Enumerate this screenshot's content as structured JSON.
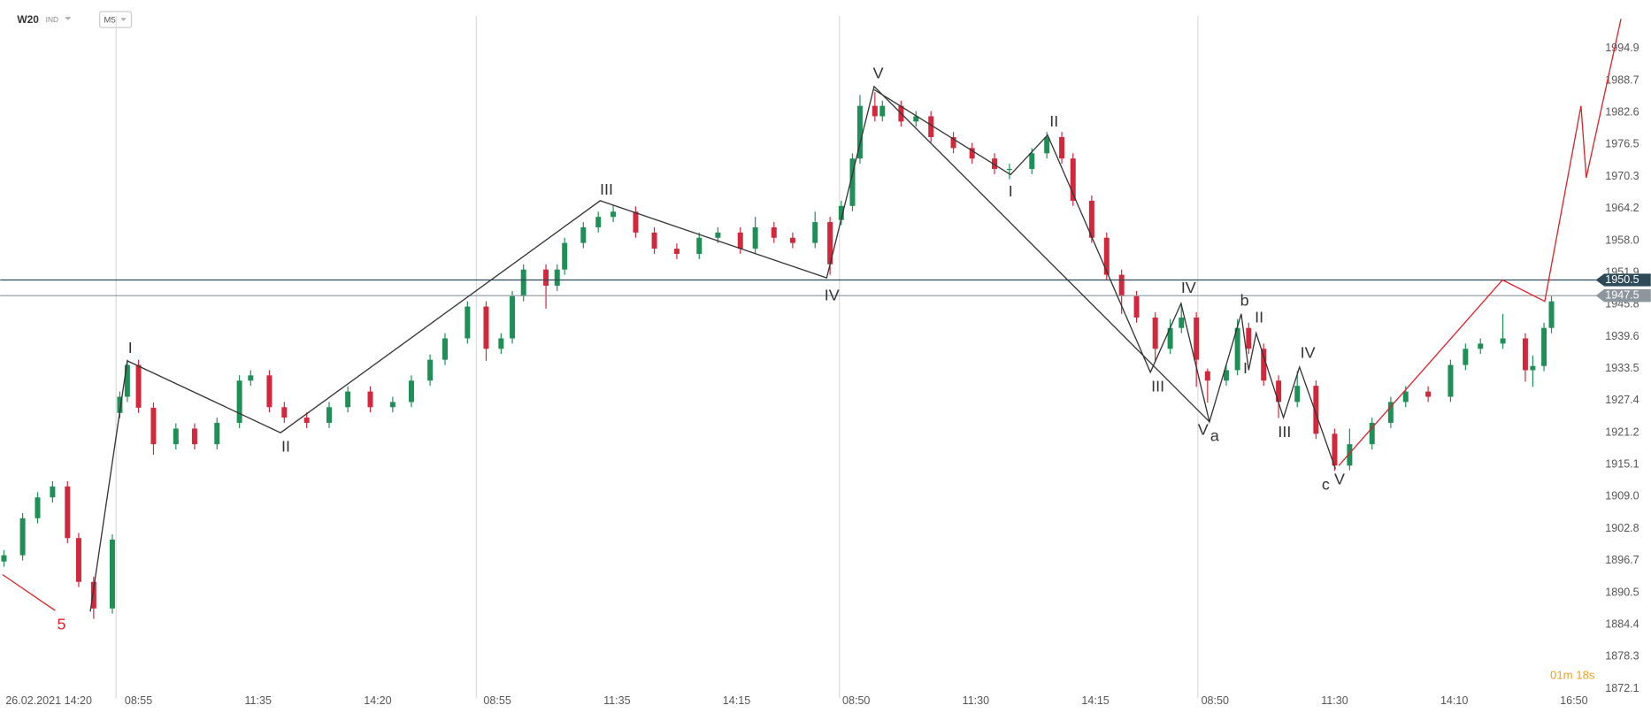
{
  "header": {
    "symbol": "W20",
    "market": "IND",
    "timeframe": "M5"
  },
  "chart_data": {
    "type": "candlestick",
    "up_color": "#1f8f58",
    "down_color": "#d3283b",
    "xlim": [
      0,
      426
    ],
    "ylim": [
      1871.3,
      2004.2
    ],
    "yticks": [
      1994.9,
      1988.7,
      1982.6,
      1976.5,
      1970.3,
      1964.2,
      {
        "value": 1958,
        "label": "1958.0"
      },
      1951.9,
      1945.8,
      1939.6,
      1933.5,
      1927.4,
      1921.2,
      1915.1,
      {
        "value": 1909,
        "label": "1909.0"
      },
      1902.8,
      1896.7,
      1890.5,
      1884.4,
      1878.3,
      1872.1
    ],
    "xticks": [
      {
        "value": 13,
        "label": "26.02.2021  14:20"
      },
      {
        "value": 37,
        "label": "08:55"
      },
      {
        "value": 69,
        "label": "11:35"
      },
      {
        "value": 101,
        "label": "14:20"
      },
      {
        "value": 133,
        "label": "08:55"
      },
      {
        "value": 165,
        "label": "11:35"
      },
      {
        "value": 197,
        "label": "14:15"
      },
      {
        "value": 229,
        "label": "08:50"
      },
      {
        "value": 261,
        "label": "11:30"
      },
      {
        "value": 293,
        "label": "14:15"
      },
      {
        "value": 325,
        "label": "08:50"
      },
      {
        "value": 357,
        "label": "11:30"
      },
      {
        "value": 389,
        "label": "14:10"
      },
      {
        "value": 421,
        "label": "16:50"
      }
    ],
    "session_lines": [
      31,
      127.4,
      224.5,
      320.4
    ],
    "x": [
      1,
      6,
      10,
      14,
      18,
      21,
      25,
      30,
      32,
      34,
      37,
      41,
      47,
      52,
      58,
      64,
      67,
      72,
      76,
      82,
      88,
      93,
      99,
      105,
      110,
      115,
      119,
      125,
      130,
      134,
      137,
      140,
      146,
      149,
      151,
      156,
      160,
      164,
      170,
      175,
      181,
      187,
      192,
      198,
      202,
      207,
      212,
      218,
      222,
      225,
      228,
      230,
      234,
      236,
      241,
      245,
      249,
      255,
      260,
      266,
      270,
      276,
      280,
      284,
      287,
      292,
      296,
      300,
      304,
      309,
      313,
      316,
      320,
      323,
      328,
      331,
      334,
      338,
      342,
      347,
      352,
      357,
      361,
      367,
      372,
      376,
      382,
      388,
      392,
      396,
      402,
      408,
      410,
      413,
      415
    ],
    "ohlc": [
      [
        1896.5,
        1898.7,
        1895.5,
        1897.7
      ],
      [
        1897.7,
        1905.8,
        1896.7,
        1904.8
      ],
      [
        1904.8,
        1909.8,
        1903.8,
        1908.8
      ],
      [
        1908.8,
        1911.9,
        1907.8,
        1910.9
      ],
      [
        1910.9,
        1911.9,
        1900,
        1901
      ],
      [
        1901,
        1902,
        1891.6,
        1892.6
      ],
      [
        1892.6,
        1893.6,
        1885.5,
        1887.5
      ],
      [
        1887.5,
        1901.7,
        1886.5,
        1900.7
      ],
      [
        1925,
        1929.1,
        1924,
        1928.1
      ],
      [
        1928.1,
        1935.2,
        1927.1,
        1934.2
      ],
      [
        1934.2,
        1935.2,
        1925,
        1926
      ],
      [
        1926,
        1927,
        1917,
        1919
      ],
      [
        1919,
        1923,
        1918,
        1922
      ],
      [
        1922,
        1923,
        1918,
        1919
      ],
      [
        1919,
        1924.1,
        1918,
        1923.1
      ],
      [
        1923.1,
        1932.2,
        1922.1,
        1931.2
      ],
      [
        1931.2,
        1933.2,
        1930.2,
        1932.2
      ],
      [
        1932.2,
        1933.2,
        1925.1,
        1926.1
      ],
      [
        1926.1,
        1927.1,
        1923.1,
        1924.1
      ],
      [
        1924.1,
        1925.1,
        1922.1,
        1923.1
      ],
      [
        1923.1,
        1927.1,
        1922.1,
        1926.1
      ],
      [
        1926.1,
        1930.1,
        1925.1,
        1929.1
      ],
      [
        1929.1,
        1930.1,
        1925.1,
        1926.1
      ],
      [
        1926.1,
        1928.1,
        1925.1,
        1927.1
      ],
      [
        1927.1,
        1932.2,
        1926.1,
        1931.2
      ],
      [
        1931.2,
        1936.2,
        1930.2,
        1935.2
      ],
      [
        1935.2,
        1940.3,
        1934.2,
        1939.3
      ],
      [
        1939.3,
        1946.4,
        1938.3,
        1945.4
      ],
      [
        1945.4,
        1946.4,
        1935,
        1937.3
      ],
      [
        1937.3,
        1940.3,
        1936.3,
        1939.3
      ],
      [
        1939.3,
        1948.4,
        1938.3,
        1947.4
      ],
      [
        1947.4,
        1953.5,
        1946.4,
        1952.5
      ],
      [
        1952.5,
        1953.5,
        1945,
        1949.4
      ],
      [
        1949.4,
        1953.5,
        1948.4,
        1952.5
      ],
      [
        1952.5,
        1958.6,
        1951.5,
        1957.6
      ],
      [
        1957.6,
        1961.6,
        1956.6,
        1960.6
      ],
      [
        1960.6,
        1963.6,
        1959.6,
        1962.6
      ],
      [
        1962.6,
        1964.8,
        1961.6,
        1963.6
      ],
      [
        1963.6,
        1964.6,
        1958.6,
        1959.6
      ],
      [
        1959.6,
        1960.6,
        1955.5,
        1956.5
      ],
      [
        1956.5,
        1957.5,
        1954.5,
        1955.5
      ],
      [
        1955.5,
        1959.6,
        1954.5,
        1958.6
      ],
      [
        1958.6,
        1960.6,
        1957.6,
        1959.6
      ],
      [
        1959.6,
        1960.6,
        1955.5,
        1956.5
      ],
      [
        1956.5,
        1962.6,
        1955.5,
        1960.6
      ],
      [
        1960.6,
        1961.6,
        1957.6,
        1958.6
      ],
      [
        1958.6,
        1959.6,
        1956.6,
        1957.6
      ],
      [
        1957.6,
        1963.6,
        1956.6,
        1961.6
      ],
      [
        1961.6,
        1962.6,
        1951.5,
        1953.5
      ],
      [
        1962,
        1965.7,
        1961,
        1964.7
      ],
      [
        1964.7,
        1974.8,
        1963.7,
        1973.8
      ],
      [
        1973.8,
        1986,
        1972.8,
        1983.9
      ],
      [
        1983.9,
        1986.5,
        1980.9,
        1981.9
      ],
      [
        1981.9,
        1984.9,
        1980.9,
        1983.9
      ],
      [
        1983.9,
        1984.9,
        1979.9,
        1980.9
      ],
      [
        1980.9,
        1982.9,
        1979.9,
        1981.9
      ],
      [
        1981.9,
        1982.9,
        1976.9,
        1977.9
      ],
      [
        1977.9,
        1978.9,
        1974.8,
        1975.8
      ],
      [
        1975.8,
        1976.8,
        1972.8,
        1973.8
      ],
      [
        1973.8,
        1974.8,
        1970.8,
        1971.8
      ],
      [
        1971.8,
        1972.8,
        1969.8,
        1971.8
      ],
      [
        1971.8,
        1975.8,
        1970.8,
        1974.8
      ],
      [
        1974.8,
        1978.9,
        1973.8,
        1977.9
      ],
      [
        1977.9,
        1978.9,
        1972.8,
        1973.8
      ],
      [
        1973.8,
        1974.8,
        1964.7,
        1965.7
      ],
      [
        1965.7,
        1966.7,
        1957.6,
        1958.6
      ],
      [
        1958.6,
        1959.6,
        1950.5,
        1951.5
      ],
      [
        1951.5,
        1952.5,
        1944,
        1947.4
      ],
      [
        1947.4,
        1948.4,
        1942.3,
        1943.3
      ],
      [
        1943.3,
        1944.3,
        1935,
        1937.3
      ],
      [
        1937.3,
        1943,
        1936.3,
        1941.3
      ],
      [
        1941.3,
        1946,
        1940.3,
        1943.3
      ],
      [
        1943.3,
        1944.3,
        1930,
        1935.2
      ],
      [
        1933,
        1933.5,
        1927,
        1931.2
      ],
      [
        1931.2,
        1934.2,
        1930.2,
        1933.2
      ],
      [
        1933.2,
        1943,
        1932.2,
        1941.3
      ],
      [
        1941.3,
        1942.3,
        1936.3,
        1937.3
      ],
      [
        1937.3,
        1938.3,
        1930.2,
        1931.2
      ],
      [
        1931.2,
        1932.2,
        1924,
        1927.1
      ],
      [
        1927.1,
        1933,
        1926.1,
        1930.2
      ],
      [
        1930.2,
        1931.2,
        1920,
        1921
      ],
      [
        1921,
        1922,
        1913.9,
        1914.9
      ],
      [
        1914.9,
        1922,
        1914,
        1919
      ],
      [
        1919,
        1924.1,
        1918,
        1923.1
      ],
      [
        1923.1,
        1928.1,
        1922.1,
        1927.1
      ],
      [
        1927.1,
        1930.1,
        1926.1,
        1929.1
      ],
      [
        1929.1,
        1930.1,
        1927.1,
        1928.1
      ],
      [
        1928.1,
        1935.2,
        1927.1,
        1934.2
      ],
      [
        1934.2,
        1938.3,
        1933.2,
        1937.3
      ],
      [
        1937.3,
        1939.3,
        1936.3,
        1938.3
      ],
      [
        1938.3,
        1944,
        1937.3,
        1939.3
      ],
      [
        1939.3,
        1940.3,
        1931,
        1933.2
      ],
      [
        1933.2,
        1936,
        1930,
        1934
      ],
      [
        1934,
        1942.3,
        1933,
        1941.3
      ],
      [
        1941.3,
        1947.4,
        1940.3,
        1946.4
      ]
    ],
    "price_lines": [
      {
        "value": 1950.5,
        "color": "#2e4a58"
      },
      {
        "value": 1947.5,
        "color": "#8c969c"
      }
    ],
    "wave_lines": [
      {
        "color": "#333333",
        "points": [
          [
            24.1,
            1886.9
          ],
          [
            34,
            1935
          ],
          [
            75,
            1921.2
          ],
          [
            160.5,
            1965.7
          ],
          [
            221.1,
            1950.9
          ],
          [
            233.8,
            1987.6
          ],
          [
            323.5,
            1923.3
          ]
        ]
      },
      {
        "color": "#333333",
        "points": [
          [
            233.8,
            1987
          ],
          [
            270.3,
            1970.7
          ],
          [
            280.2,
            1978.3
          ],
          [
            307.7,
            1932.8
          ],
          [
            315.9,
            1946
          ],
          [
            323.5,
            1923.3
          ],
          [
            332,
            1944
          ],
          [
            334,
            1933.2
          ],
          [
            336,
            1940.3
          ],
          [
            343.3,
            1924.1
          ],
          [
            347.6,
            1933.8
          ],
          [
            357.2,
            1914.3
          ]
        ]
      },
      {
        "color": "#e0202a",
        "points": [
          [
            358.1,
            1914.9
          ],
          [
            401.9,
            1950.5
          ],
          [
            413.2,
            1946.4
          ],
          [
            422.9,
            1983.9
          ],
          [
            424.3,
            1970.1
          ],
          [
            433.6,
            2000.6
          ]
        ]
      },
      {
        "color": "#e0202a",
        "points": [
          [
            0.6,
            1894
          ],
          [
            14.7,
            1887.1
          ]
        ]
      }
    ],
    "wave_labels": [
      {
        "text": "I",
        "x": 34.8,
        "y": 1937.3,
        "color": "#333333"
      },
      {
        "text": "II",
        "x": 76.4,
        "y": 1918.4,
        "color": "#333333"
      },
      {
        "text": "III",
        "x": 162.2,
        "y": 1967.7,
        "color": "#333333"
      },
      {
        "text": "IV",
        "x": 222.5,
        "y": 1947.4,
        "color": "#333333"
      },
      {
        "text": "V",
        "x": 234.9,
        "y": 1990,
        "color": "#333333"
      },
      {
        "text": "I",
        "x": 270.3,
        "y": 1967.3,
        "color": "#333333"
      },
      {
        "text": "II",
        "x": 281.9,
        "y": 1980.7,
        "color": "#333333"
      },
      {
        "text": "III",
        "x": 309.7,
        "y": 1929.9,
        "color": "#333333"
      },
      {
        "text": "IV",
        "x": 317.9,
        "y": 1948.8,
        "color": "#333333"
      },
      {
        "text": "V",
        "x": 321.8,
        "y": 1921.6,
        "color": "#333333"
      },
      {
        "text": "a",
        "x": 324.9,
        "y": 1920.4,
        "color": "#333333"
      },
      {
        "text": "b",
        "x": 332.9,
        "y": 1946.4,
        "color": "#333333"
      },
      {
        "text": "I",
        "x": 333.1,
        "y": 1933.4,
        "color": "#333333"
      },
      {
        "text": "II",
        "x": 336.8,
        "y": 1943.2,
        "color": "#333333"
      },
      {
        "text": "III",
        "x": 343.6,
        "y": 1921.2,
        "color": "#333333"
      },
      {
        "text": "IV",
        "x": 349.8,
        "y": 1936.4,
        "color": "#333333"
      },
      {
        "text": "c",
        "x": 354.6,
        "y": 1911.1,
        "color": "#333333"
      },
      {
        "text": "V",
        "x": 358.3,
        "y": 1912.1,
        "color": "#333333"
      },
      {
        "text": "5",
        "x": 16.4,
        "y": 1884.3,
        "color": "#e0202a"
      }
    ],
    "countdown": "01m 18s"
  }
}
